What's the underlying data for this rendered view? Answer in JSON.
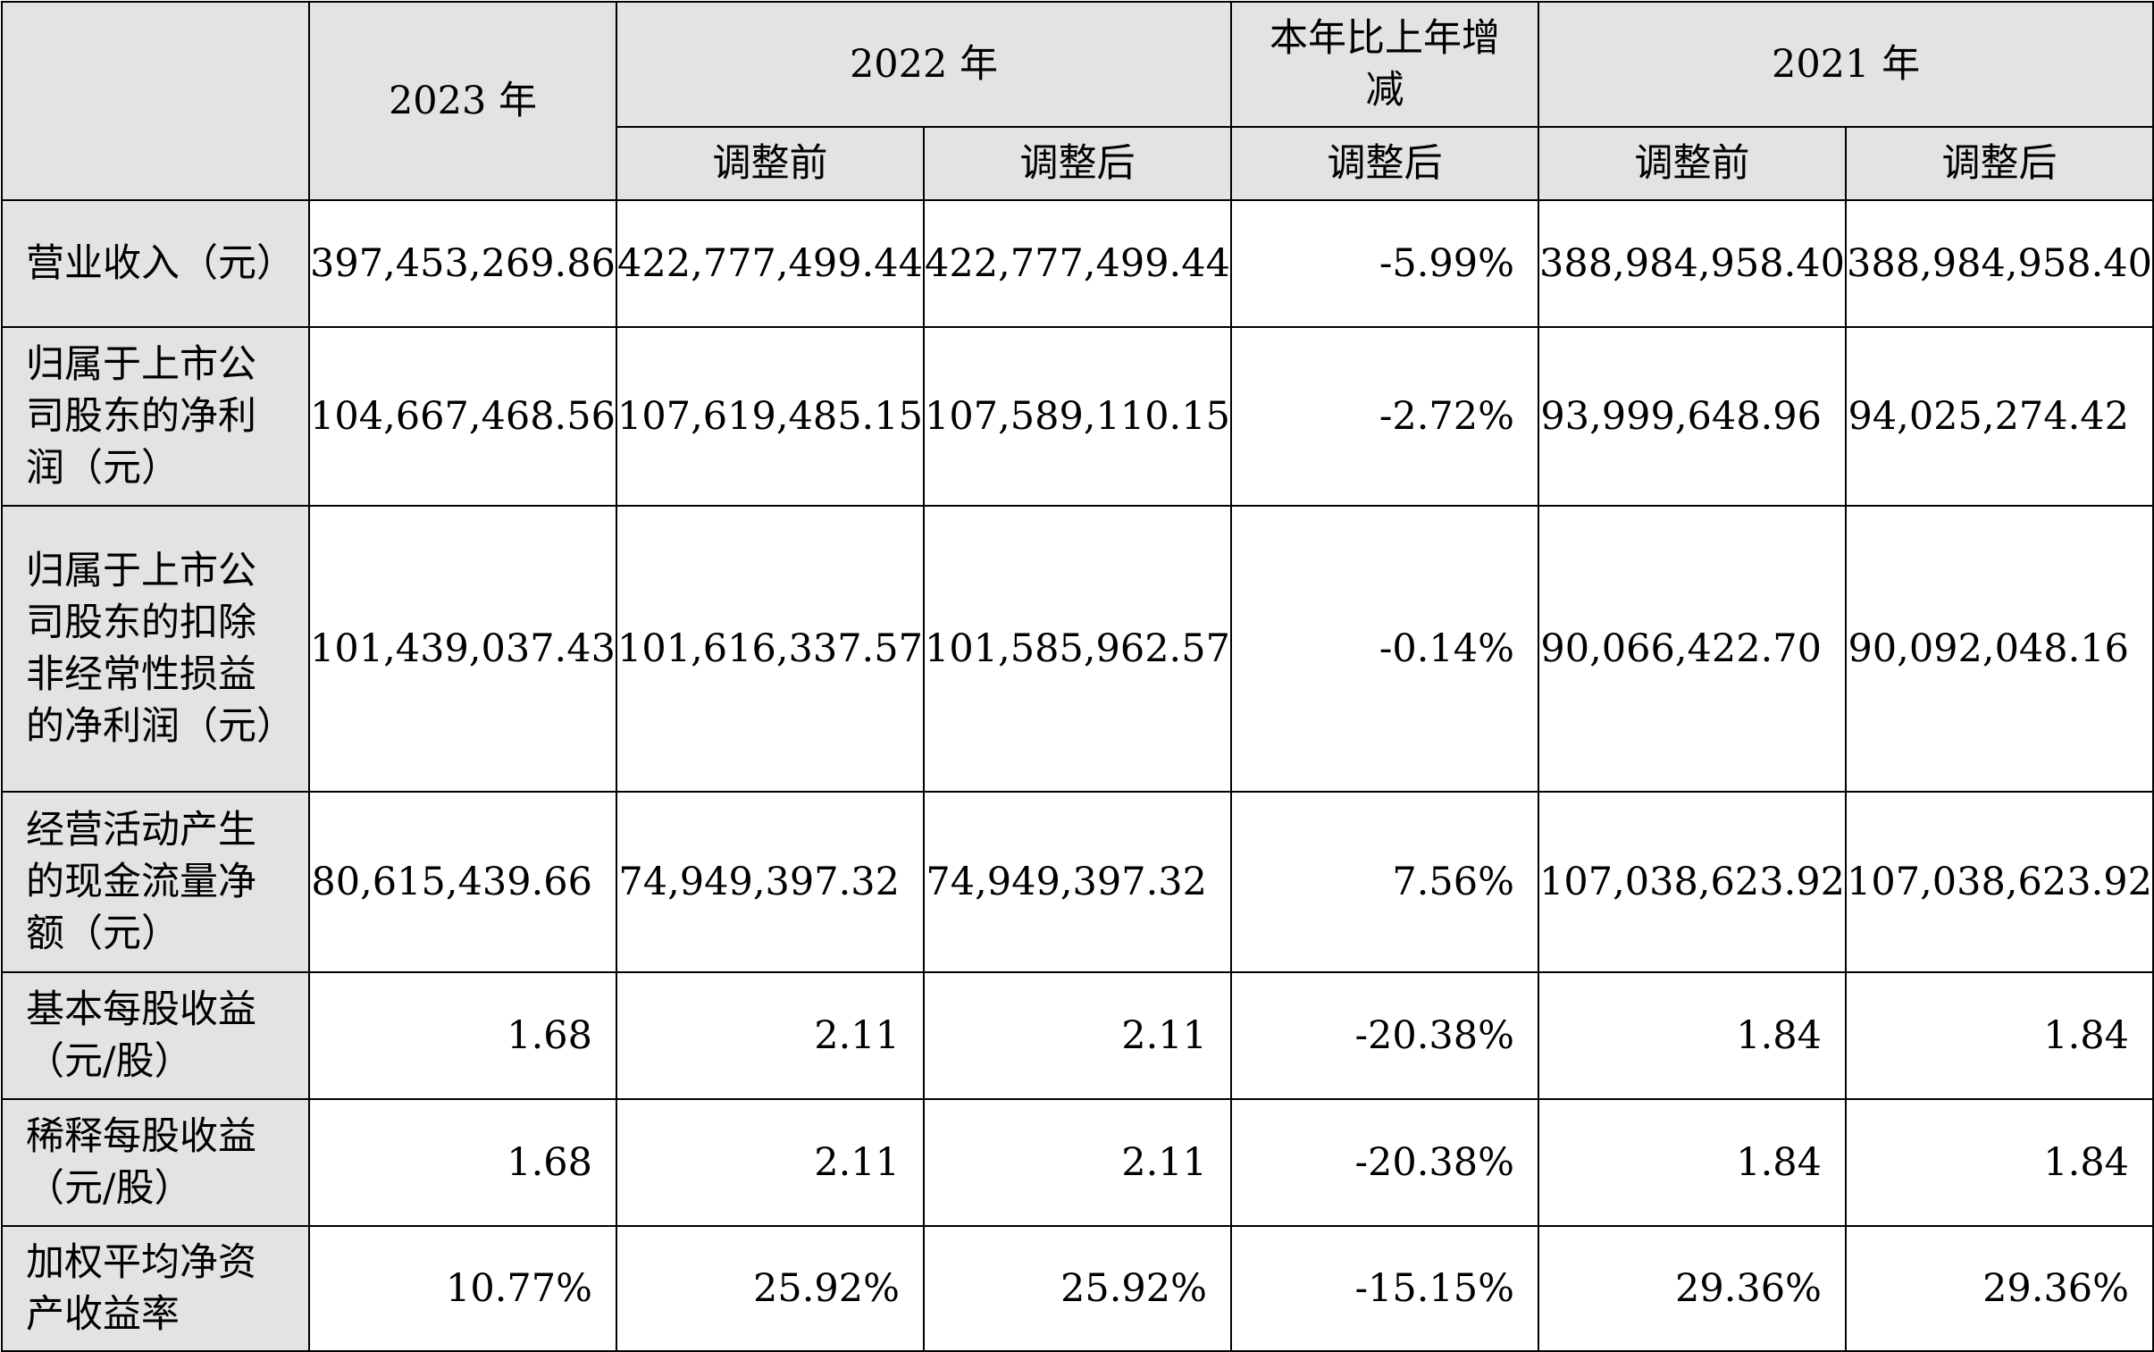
{
  "header": {
    "year_2023": "2023 年",
    "year_2022": "2022 年",
    "change": "本年比上年增减",
    "year_2021": "2021 年",
    "before_adj_2022": "调整前",
    "after_adj_2022": "调整后",
    "change_after_adj": "调整后",
    "before_adj_2021": "调整前",
    "after_adj_2021": "调整后"
  },
  "rows": [
    {
      "label": "营业收入（元）",
      "values": [
        "397,453,269.86",
        "422,777,499.44",
        "422,777,499.44",
        "-5.99%",
        "388,984,958.40",
        "388,984,958.40"
      ]
    },
    {
      "label": "归属于上市公司股东的净利润（元）",
      "values": [
        "104,667,468.56",
        "107,619,485.15",
        "107,589,110.15",
        "-2.72%",
        "93,999,648.96",
        "94,025,274.42"
      ]
    },
    {
      "label": "归属于上市公司股东的扣除非经常性损益的净利润（元）",
      "values": [
        "101,439,037.43",
        "101,616,337.57",
        "101,585,962.57",
        "-0.14%",
        "90,066,422.70",
        "90,092,048.16"
      ]
    },
    {
      "label": "经营活动产生的现金流量净额（元）",
      "values": [
        "80,615,439.66",
        "74,949,397.32",
        "74,949,397.32",
        "7.56%",
        "107,038,623.92",
        "107,038,623.92"
      ]
    },
    {
      "label": "基本每股收益（元/股）",
      "values": [
        "1.68",
        "2.11",
        "2.11",
        "-20.38%",
        "1.84",
        "1.84"
      ]
    },
    {
      "label": "稀释每股收益（元/股）",
      "values": [
        "1.68",
        "2.11",
        "2.11",
        "-20.38%",
        "1.84",
        "1.84"
      ]
    },
    {
      "label": "加权平均净资产收益率",
      "values": [
        "10.77%",
        "25.92%",
        "25.92%",
        "-15.15%",
        "29.36%",
        "29.36%"
      ]
    }
  ]
}
